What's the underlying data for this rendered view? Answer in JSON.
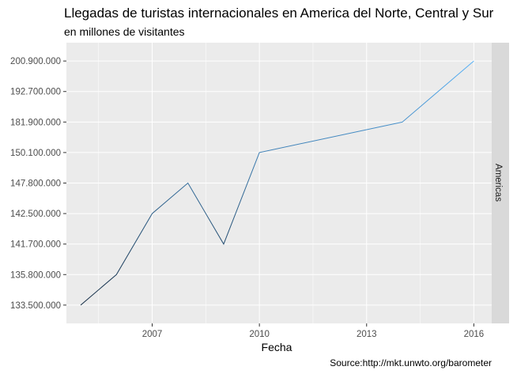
{
  "chart_data": {
    "type": "line",
    "title": "Llegadas de turistas internacionales en America del Norte, Central y Sur",
    "subtitle": "en millones de visitantes",
    "xlabel": "Fecha",
    "ylabel": "",
    "caption": "Source:http://mkt.unwto.org/barometer",
    "facet_label": "Americas",
    "x_ticks": [
      "2007",
      "2010",
      "2013",
      "2016"
    ],
    "y_ticks": [
      "133.500.000",
      "135.800.000",
      "141.700.000",
      "142.500.000",
      "147.800.000",
      "150.100.000",
      "181.900.000",
      "192.700.000",
      "200.900.000"
    ],
    "y_scale": "categorical-discrete",
    "x_range": [
      2004.6,
      2016.5
    ],
    "grid": true,
    "line_color_low": "#132B43",
    "line_color_high": "#56B1F7",
    "panel_bg": "#EBEBEB",
    "series": [
      {
        "x": [
          2005,
          2006,
          2007,
          2008,
          2009,
          2010,
          2014,
          2016
        ],
        "y": [
          "133.500.000",
          "135.800.000",
          "142.500.000",
          "147.800.000",
          "141.700.000",
          "150.100.000",
          "181.900.000",
          "200.900.000"
        ]
      }
    ]
  }
}
